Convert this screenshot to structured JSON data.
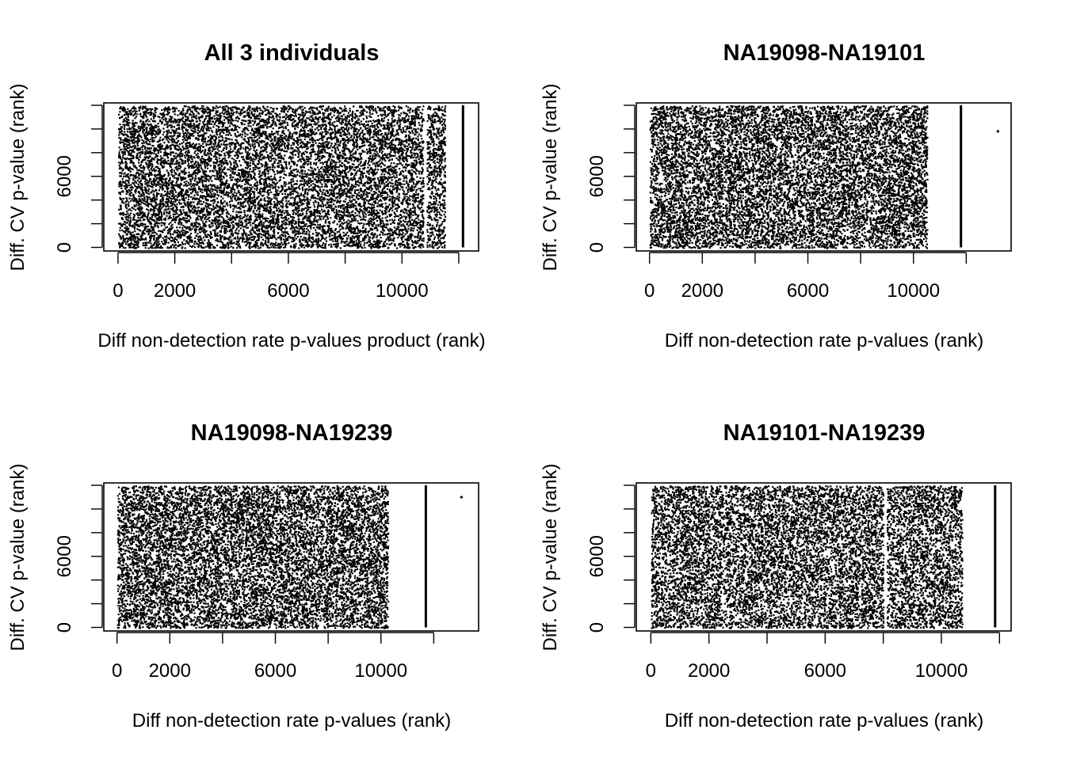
{
  "chart_data": [
    {
      "type": "scatter",
      "title": "All 3 individuals",
      "xlabel": "Diff non-detection rate p-values product (rank)",
      "ylabel": "Diff. CV p-value (rank)",
      "xlim": [
        -500,
        12700
      ],
      "ylim": [
        -300,
        12200
      ],
      "x_ticks": [
        0,
        2000,
        4000,
        6000,
        8000,
        10000,
        12000
      ],
      "x_tick_labels": [
        "0",
        "2000",
        "",
        "6000",
        "",
        "10000",
        ""
      ],
      "y_ticks": [
        0,
        2000,
        4000,
        6000,
        8000,
        10000,
        12000
      ],
      "y_tick_labels": [
        "0",
        "",
        "",
        "6000",
        "",
        "",
        ""
      ],
      "point_cloud": {
        "x_range": [
          0,
          11500
        ],
        "y_range": [
          0,
          12000
        ],
        "points": 11500,
        "gaps_x": [
          10800
        ]
      },
      "vertical_lines": [
        {
          "x": 12150,
          "y_range": [
            0,
            12000
          ]
        }
      ],
      "isolated_points": []
    },
    {
      "type": "scatter",
      "title": "NA19098-NA19101",
      "xlabel": "Diff non-detection rate p-values (rank)",
      "ylabel": "Diff. CV p-value (rank)",
      "xlim": [
        -500,
        13700
      ],
      "ylim": [
        -300,
        12200
      ],
      "x_ticks": [
        0,
        2000,
        4000,
        6000,
        8000,
        10000,
        12000
      ],
      "x_tick_labels": [
        "0",
        "2000",
        "",
        "6000",
        "",
        "10000",
        ""
      ],
      "y_ticks": [
        0,
        2000,
        4000,
        6000,
        8000,
        10000,
        12000
      ],
      "y_tick_labels": [
        "0",
        "",
        "",
        "6000",
        "",
        "",
        ""
      ],
      "point_cloud": {
        "x_range": [
          0,
          10500
        ],
        "y_range": [
          0,
          12000
        ],
        "points": 10500,
        "gaps_x": []
      },
      "vertical_lines": [
        {
          "x": 11800,
          "y_range": [
            0,
            12000
          ]
        }
      ],
      "isolated_points": [
        {
          "x": 13200,
          "y": 9800
        }
      ]
    },
    {
      "type": "scatter",
      "title": "NA19098-NA19239",
      "xlabel": "Diff non-detection rate p-values (rank)",
      "ylabel": "Diff. CV p-value (rank)",
      "xlim": [
        -500,
        13700
      ],
      "ylim": [
        -300,
        12200
      ],
      "x_ticks": [
        0,
        2000,
        4000,
        6000,
        8000,
        10000,
        12000
      ],
      "x_tick_labels": [
        "0",
        "2000",
        "",
        "6000",
        "",
        "10000",
        ""
      ],
      "y_ticks": [
        0,
        2000,
        4000,
        6000,
        8000,
        10000,
        12000
      ],
      "y_tick_labels": [
        "0",
        "",
        "",
        "6000",
        "",
        "",
        ""
      ],
      "point_cloud": {
        "x_range": [
          0,
          10250
        ],
        "y_range": [
          0,
          12000
        ],
        "points": 10250,
        "gaps_x": []
      },
      "vertical_lines": [
        {
          "x": 11700,
          "y_range": [
            0,
            12000
          ]
        }
      ],
      "isolated_points": [
        {
          "x": 13050,
          "y": 11000
        }
      ]
    },
    {
      "type": "scatter",
      "title": "NA19101-NA19239",
      "xlabel": "Diff non-detection rate p-values (rank)",
      "ylabel": "Diff. CV p-value (rank)",
      "xlim": [
        -500,
        12400
      ],
      "ylim": [
        -300,
        12200
      ],
      "x_ticks": [
        0,
        2000,
        4000,
        6000,
        8000,
        10000,
        12000
      ],
      "x_tick_labels": [
        "0",
        "2000",
        "",
        "6000",
        "",
        "10000",
        ""
      ],
      "y_ticks": [
        0,
        2000,
        4000,
        6000,
        8000,
        10000,
        12000
      ],
      "y_tick_labels": [
        "0",
        "",
        "",
        "6000",
        "",
        "",
        ""
      ],
      "point_cloud": {
        "x_range": [
          0,
          10700
        ],
        "y_range": [
          0,
          12000
        ],
        "points": 10700,
        "gaps_x": [
          8050
        ]
      },
      "vertical_lines": [
        {
          "x": 11850,
          "y_range": [
            0,
            12000
          ]
        }
      ],
      "isolated_points": []
    }
  ]
}
